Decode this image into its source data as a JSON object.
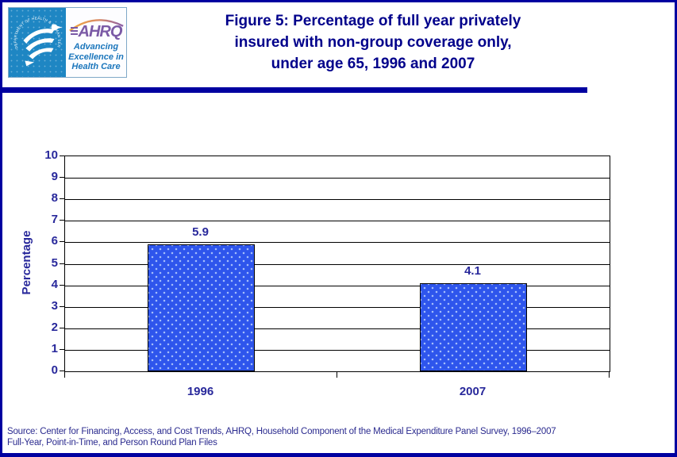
{
  "header": {
    "logo": {
      "seal_text": "DEPARTMENT OF HEALTH & HUMAN SERVICES • USA",
      "acronym": "AHRQ",
      "tagline_line1": "Advancing",
      "tagline_line2": "Excellence in",
      "tagline_line3": "Health Care"
    },
    "title_line1": "Figure 5: Percentage of full year privately",
    "title_line2": "insured with non-group coverage only,",
    "title_line3": "under age 65, 1996 and 2007"
  },
  "chart_data": {
    "type": "bar",
    "title": "Figure 5: Percentage of full year privately insured with non-group coverage only, under age 65, 1996 and 2007",
    "categories": [
      "1996",
      "2007"
    ],
    "values": [
      5.9,
      4.1
    ],
    "value_labels": [
      "5.9",
      "4.1"
    ],
    "xlabel": "",
    "ylabel": "Percentage",
    "ylim": [
      0,
      10
    ],
    "ytick_step": 1,
    "yticks": [
      0,
      1,
      2,
      3,
      4,
      5,
      6,
      7,
      8,
      9,
      10
    ],
    "grid": true,
    "legend": "none",
    "bar_color": "#2E55EC",
    "bar_dot_color": "#A8C0FA",
    "bar_border_color": "#000000",
    "label_color": "#28289B"
  },
  "footer": {
    "source_line1": "Source: Center for Financing, Access, and Cost Trends, AHRQ, Household Component of the Medical Expenditure Panel Survey, 1996–2007",
    "source_line2": "Full-Year, Point-in-Time, and Person Round Plan Files"
  },
  "colors": {
    "frame_border": "#0000A0",
    "title_navy": "#00008B",
    "rule_navy": "#0000A0",
    "seal_blue": "#1E86C3",
    "ahrq_purple": "#7B5AA6",
    "tagline_blue": "#1B76BC",
    "footer_navy": "#2B2B8F"
  }
}
